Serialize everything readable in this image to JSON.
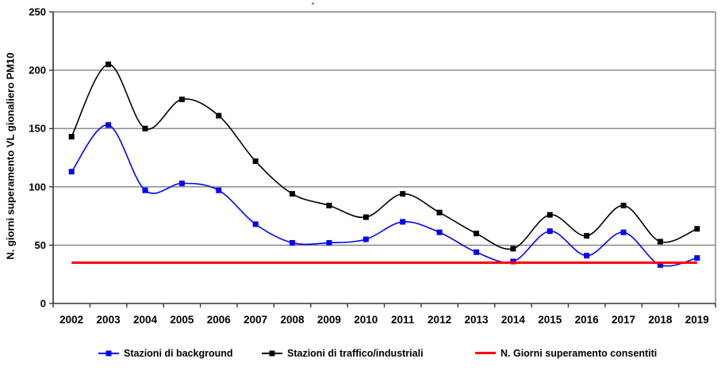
{
  "chart_data": {
    "type": "line",
    "title": "",
    "xlabel": "",
    "ylabel": "N. giorni superamento VL gionaliero PM10",
    "ylim": [
      0,
      250
    ],
    "yticks": [
      0,
      50,
      100,
      150,
      200,
      250
    ],
    "grid": "horizontal",
    "legend_position": "bottom",
    "categories": [
      "2002",
      "2003",
      "2004",
      "2005",
      "2006",
      "2007",
      "2008",
      "2009",
      "2010",
      "2011",
      "2012",
      "2013",
      "2014",
      "2015",
      "2016",
      "2017",
      "2018",
      "2019"
    ],
    "series": [
      {
        "name": "Stazioni di background",
        "color": "#0000ff",
        "marker": "square",
        "smooth": true,
        "values": [
          113,
          153,
          97,
          103,
          97,
          68,
          52,
          52,
          55,
          70,
          61,
          44,
          36,
          62,
          41,
          61,
          33,
          39
        ]
      },
      {
        "name": "Stazioni di traffico/industriali",
        "color": "#000000",
        "marker": "square",
        "smooth": true,
        "values": [
          143,
          205,
          150,
          175,
          161,
          122,
          94,
          84,
          74,
          94,
          78,
          60,
          47,
          76,
          58,
          84,
          53,
          64
        ]
      },
      {
        "name": "N. Giorni superamento consentiti",
        "color": "#ff0000",
        "marker": "none",
        "smooth": false,
        "values": [
          35,
          35,
          35,
          35,
          35,
          35,
          35,
          35,
          35,
          35,
          35,
          35,
          35,
          35,
          35,
          35,
          35,
          35
        ]
      }
    ],
    "colors": {
      "gridline": "#808080",
      "plot_border": "#808080",
      "axis": "#333333",
      "background": "#ffffff",
      "series_background": "#0000ff",
      "series_traffic": "#000000",
      "series_limit": "#ff0000"
    }
  }
}
